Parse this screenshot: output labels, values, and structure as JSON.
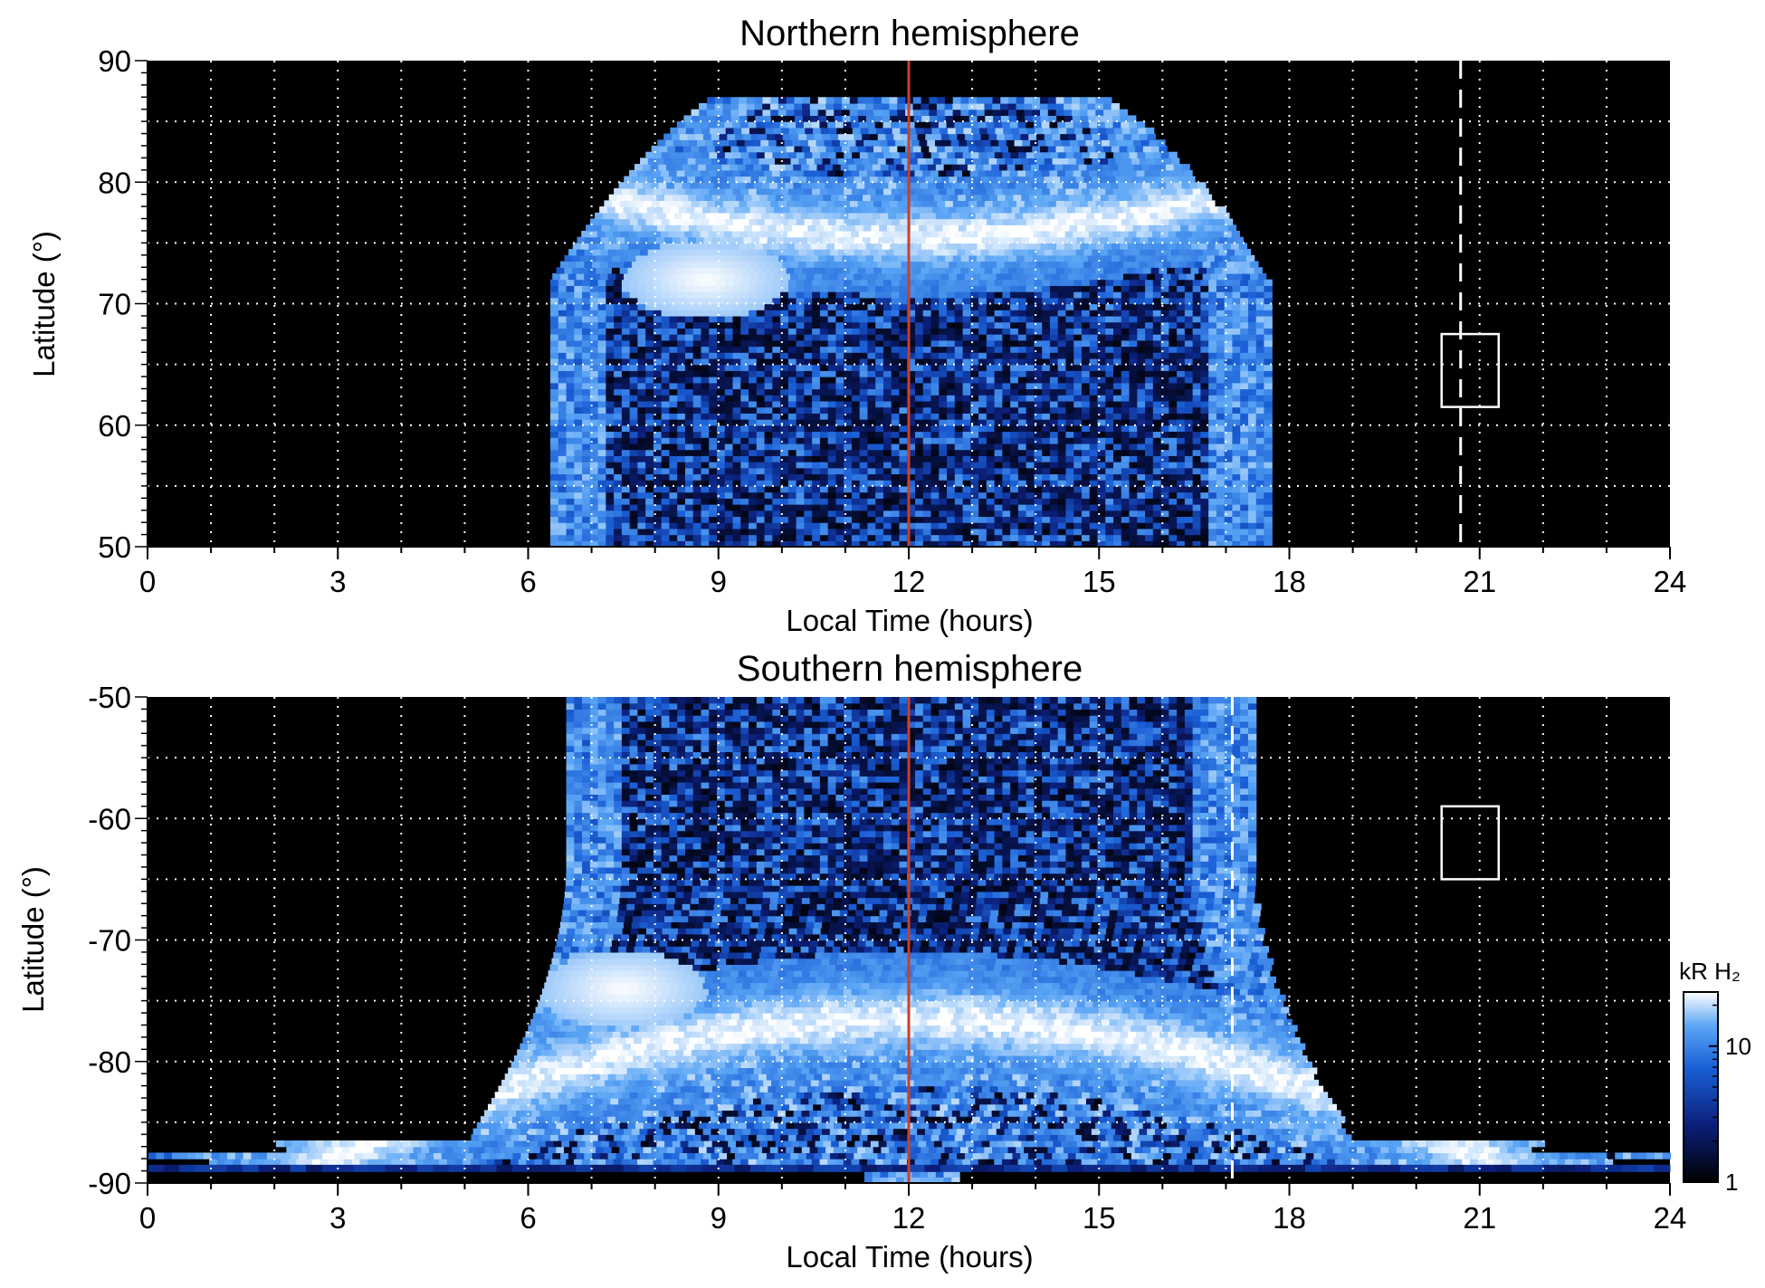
{
  "chart_data": [
    {
      "type": "heatmap",
      "title": "Northern hemisphere",
      "xlabel": "Local Time (hours)",
      "ylabel": "Latitude (°)",
      "xlim": [
        0,
        24
      ],
      "ylim": [
        50,
        90
      ],
      "xticks": [
        "0",
        "3",
        "6",
        "9",
        "12",
        "15",
        "18",
        "21",
        "24"
      ],
      "yticks": [
        "50",
        "60",
        "70",
        "80",
        "90"
      ],
      "grid": true,
      "grid_x_step_hours": 1,
      "grid_y_step_deg": 5,
      "emission_extent": {
        "lt_start": 6.4,
        "lt_end": 17.7,
        "lat_min": 50,
        "lat_max": 87
      },
      "auroral_oval": {
        "lt_center": 12,
        "lat_center": 75.5,
        "lat_width": 2.2
      },
      "bright_spot": {
        "lt": 8.8,
        "lat": 72,
        "brightness": "high"
      },
      "noon_line": {
        "lt": 12,
        "color": "#c8402a"
      },
      "dashed_line": {
        "lt": 20.7,
        "color": "#ffffff"
      },
      "box": {
        "lt_min": 20.4,
        "lt_max": 21.3,
        "lat_min": 61.5,
        "lat_max": 67.5,
        "color": "#ffffff"
      }
    },
    {
      "type": "heatmap",
      "title": "Southern hemisphere",
      "xlabel": "Local Time (hours)",
      "ylabel": "Latitude (°)",
      "xlim": [
        0,
        24
      ],
      "ylim": [
        -90,
        -50
      ],
      "xticks": [
        "0",
        "3",
        "6",
        "9",
        "12",
        "15",
        "18",
        "21",
        "24"
      ],
      "yticks": [
        "-50",
        "-60",
        "-70",
        "-80",
        "-90"
      ],
      "grid": true,
      "grid_x_step_hours": 1,
      "grid_y_step_deg": 5,
      "emission_extent": {
        "lt_start": 6.0,
        "lt_end": 18.2,
        "lat_min": -90,
        "lat_max": -50
      },
      "auroral_oval": {
        "lt_center": 12,
        "lat_center": -76.5,
        "lat_width": 2.5
      },
      "bright_spot": {
        "lt": 7.5,
        "lat": -74,
        "brightness": "high"
      },
      "noon_line": {
        "lt": 12,
        "color": "#c8402a"
      },
      "dashed_line": {
        "lt": 17.1,
        "color": "#ffffff"
      },
      "box": {
        "lt_min": 20.4,
        "lt_max": 21.3,
        "lat_min": -65,
        "lat_max": -59,
        "color": "#ffffff"
      }
    }
  ],
  "colorbar": {
    "label": "kR H₂",
    "scale": "log",
    "range": [
      1,
      25
    ],
    "ticks": [
      "1",
      "10"
    ],
    "colors": [
      "#000000",
      "#0b1f7a",
      "#1a5fd6",
      "#5aa5f5",
      "#ffffff"
    ]
  }
}
